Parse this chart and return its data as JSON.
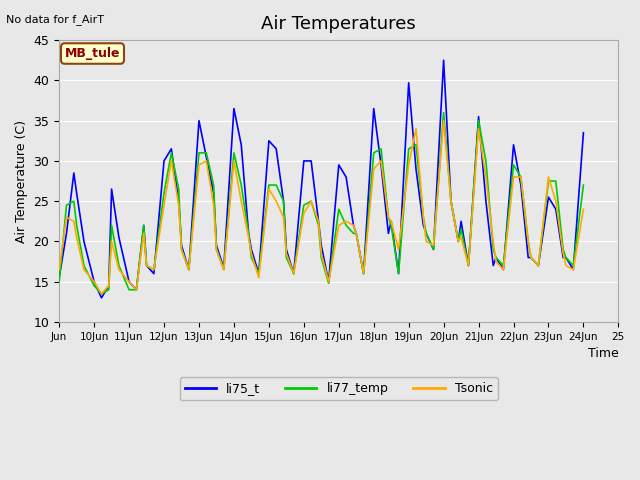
{
  "title": "Air Temperatures",
  "no_data_text": "No data for f_AirT",
  "xlabel": "Time",
  "ylabel": "Air Temperature (C)",
  "ylim": [
    10,
    45
  ],
  "xlim": [
    0,
    16
  ],
  "background_color": "#e8e8e8",
  "legend_entries": [
    "li75_t",
    "li77_temp",
    "Tsonic"
  ],
  "legend_colors": [
    "#0000ff",
    "#00cc00",
    "#ffaa00"
  ],
  "mb_tule_label": "MB_tule",
  "xtick_positions": [
    0,
    1,
    2,
    3,
    4,
    5,
    6,
    7,
    8,
    9,
    10,
    11,
    12,
    13,
    14,
    15,
    16
  ],
  "xtick_labels": [
    "Jun",
    "10Jun",
    "11Jun",
    "12Jun",
    "13Jun",
    "14Jun",
    "15Jun",
    "16Jun",
    "17Jun",
    "18Jun",
    "19Jun",
    "20Jun",
    "21Jun",
    "22Jun",
    "23Jun",
    "24Jun",
    "25"
  ],
  "ytick_vals": [
    10,
    15,
    20,
    25,
    30,
    35,
    40,
    45
  ],
  "li75_t_x": [
    0.0,
    0.21,
    0.42,
    0.5,
    0.71,
    1.0,
    1.21,
    1.42,
    1.5,
    1.71,
    2.0,
    2.21,
    2.42,
    2.5,
    2.71,
    3.0,
    3.21,
    3.42,
    3.5,
    3.71,
    4.0,
    4.21,
    4.42,
    4.5,
    4.71,
    5.0,
    5.21,
    5.42,
    5.5,
    5.71,
    6.0,
    6.21,
    6.42,
    6.5,
    6.71,
    7.0,
    7.21,
    7.42,
    7.5,
    7.71,
    8.0,
    8.21,
    8.42,
    8.5,
    8.71,
    9.0,
    9.21,
    9.42,
    9.5,
    9.71,
    10.0,
    10.21,
    10.42,
    10.5,
    10.71,
    11.0,
    11.21,
    11.42,
    11.5,
    11.71,
    12.0,
    12.21,
    12.42,
    12.5,
    12.71,
    13.0,
    13.21,
    13.42,
    13.5,
    13.71,
    14.0,
    14.21,
    14.42,
    14.5,
    14.71,
    15.0
  ],
  "li75_t_y": [
    15.5,
    21.0,
    28.5,
    26.0,
    20.0,
    15.0,
    13.0,
    14.5,
    26.5,
    20.5,
    15.0,
    14.0,
    22.0,
    17.0,
    16.0,
    30.0,
    31.5,
    25.0,
    19.5,
    16.5,
    35.0,
    30.5,
    26.0,
    19.5,
    16.7,
    36.5,
    32.0,
    21.0,
    19.0,
    16.0,
    32.5,
    31.5,
    25.0,
    19.0,
    16.0,
    30.0,
    30.0,
    22.5,
    19.5,
    15.0,
    29.5,
    28.0,
    22.0,
    21.0,
    16.0,
    36.5,
    29.5,
    21.0,
    22.5,
    16.0,
    39.7,
    29.0,
    22.0,
    21.0,
    19.0,
    42.5,
    25.0,
    20.0,
    22.5,
    17.0,
    35.5,
    25.0,
    17.0,
    18.0,
    16.5,
    32.0,
    27.0,
    18.0,
    18.0,
    17.0,
    25.5,
    24.0,
    18.0,
    18.0,
    16.5,
    33.5
  ],
  "li77_temp_x": [
    0.0,
    0.21,
    0.42,
    0.5,
    0.71,
    1.0,
    1.21,
    1.42,
    1.5,
    1.71,
    2.0,
    2.21,
    2.42,
    2.5,
    2.71,
    3.0,
    3.21,
    3.42,
    3.5,
    3.71,
    4.0,
    4.21,
    4.42,
    4.5,
    4.71,
    5.0,
    5.21,
    5.42,
    5.5,
    5.71,
    6.0,
    6.21,
    6.42,
    6.5,
    6.71,
    7.0,
    7.21,
    7.42,
    7.5,
    7.71,
    8.0,
    8.21,
    8.42,
    8.5,
    8.71,
    9.0,
    9.21,
    9.42,
    9.5,
    9.71,
    10.0,
    10.21,
    10.42,
    10.5,
    10.71,
    11.0,
    11.21,
    11.42,
    11.5,
    11.71,
    12.0,
    12.21,
    12.42,
    12.5,
    12.71,
    13.0,
    13.21,
    13.42,
    13.5,
    13.71,
    14.0,
    14.21,
    14.42,
    14.5,
    14.71,
    15.0
  ],
  "li77_temp_y": [
    15.0,
    24.5,
    25.0,
    22.0,
    17.0,
    14.5,
    13.5,
    14.0,
    22.0,
    17.0,
    14.0,
    14.0,
    22.0,
    17.0,
    16.5,
    26.0,
    31.0,
    26.5,
    19.0,
    16.5,
    31.0,
    31.0,
    27.0,
    19.0,
    16.5,
    31.0,
    27.0,
    21.0,
    18.0,
    16.0,
    27.0,
    27.0,
    25.0,
    18.0,
    16.0,
    24.5,
    25.0,
    22.0,
    18.0,
    14.8,
    24.0,
    22.0,
    21.0,
    21.0,
    16.0,
    31.0,
    31.5,
    23.0,
    22.0,
    16.0,
    31.5,
    32.0,
    23.0,
    21.0,
    19.0,
    36.0,
    25.0,
    20.0,
    21.5,
    17.0,
    35.0,
    30.0,
    19.0,
    18.0,
    17.0,
    29.5,
    28.0,
    20.0,
    18.0,
    17.0,
    27.5,
    27.5,
    19.0,
    18.0,
    17.0,
    27.0
  ],
  "tsonic_x": [
    0.0,
    0.21,
    0.42,
    0.5,
    0.71,
    1.0,
    1.21,
    1.42,
    1.5,
    1.71,
    2.0,
    2.21,
    2.42,
    2.5,
    2.71,
    3.0,
    3.21,
    3.42,
    3.5,
    3.71,
    4.0,
    4.21,
    4.42,
    4.5,
    4.71,
    5.0,
    5.21,
    5.42,
    5.5,
    5.71,
    6.0,
    6.21,
    6.42,
    6.5,
    6.71,
    7.0,
    7.21,
    7.42,
    7.5,
    7.71,
    8.0,
    8.21,
    8.42,
    8.5,
    8.71,
    9.0,
    9.21,
    9.42,
    9.5,
    9.71,
    10.0,
    10.21,
    10.42,
    10.5,
    10.71,
    11.0,
    11.21,
    11.42,
    11.5,
    11.71,
    12.0,
    12.21,
    12.42,
    12.5,
    12.71,
    13.0,
    13.21,
    13.42,
    13.5,
    13.71,
    14.0,
    14.21,
    14.42,
    14.5,
    14.71,
    15.0
  ],
  "tsonic_y": [
    16.5,
    23.0,
    22.5,
    20.5,
    16.5,
    15.0,
    13.5,
    14.5,
    20.0,
    16.5,
    15.0,
    14.0,
    21.0,
    17.0,
    16.5,
    24.5,
    30.0,
    24.5,
    19.0,
    16.5,
    29.5,
    30.0,
    24.5,
    19.0,
    16.5,
    30.0,
    25.0,
    20.5,
    18.5,
    15.5,
    26.5,
    25.0,
    23.0,
    18.5,
    16.0,
    23.5,
    25.0,
    22.5,
    18.5,
    15.0,
    22.0,
    22.5,
    22.0,
    21.0,
    16.0,
    29.0,
    30.0,
    23.0,
    22.5,
    19.0,
    29.5,
    34.0,
    23.0,
    20.0,
    19.5,
    35.0,
    25.0,
    20.0,
    20.5,
    17.0,
    34.0,
    28.0,
    20.0,
    17.5,
    16.5,
    28.0,
    28.0,
    20.0,
    18.0,
    17.0,
    28.0,
    25.0,
    18.5,
    17.0,
    16.5,
    24.0
  ]
}
